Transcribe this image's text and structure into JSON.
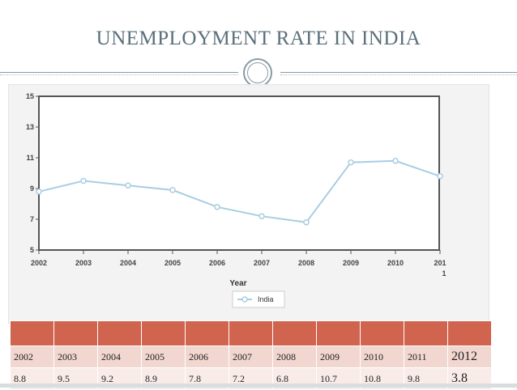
{
  "title": "UNEMPLOYMENT RATE IN INDIA",
  "colors": {
    "title": "#5a6f7a",
    "line": "#a9cde3",
    "header": "#d0644f",
    "row1": "#f2d6d0",
    "row2": "#f8ebe8"
  },
  "chart_data": {
    "type": "line",
    "title": "UNEMPLOYMENT RATE IN INDIA",
    "xlabel": "Year",
    "ylabel": "",
    "x": [
      2002,
      2003,
      2004,
      2005,
      2006,
      2007,
      2008,
      2009,
      2010,
      2011
    ],
    "series": [
      {
        "name": "India",
        "values": [
          8.8,
          9.5,
          9.2,
          8.9,
          7.8,
          7.2,
          6.8,
          10.7,
          10.8,
          9.8
        ]
      }
    ],
    "xticks": [
      "2002",
      "2003",
      "2004",
      "2005",
      "2006",
      "2007",
      "2008",
      "2009",
      "2010",
      "201"
    ],
    "xtick_wrap": "1",
    "yticks": [
      "15",
      "13",
      "11",
      "9",
      "7",
      "5"
    ],
    "ylim": [
      5,
      15
    ],
    "legend": "bottom-center",
    "grid": false
  },
  "table": {
    "years": [
      "2002",
      "2003",
      "2004",
      "2005",
      "2006",
      "2007",
      "2008",
      "2009",
      "2010",
      "2011",
      "2012"
    ],
    "values": [
      "8.8",
      "9.5",
      "9.2",
      "8.9",
      "7.8",
      "7.2",
      "6.8",
      "10.7",
      "10.8",
      "9.8",
      "3.8"
    ]
  }
}
